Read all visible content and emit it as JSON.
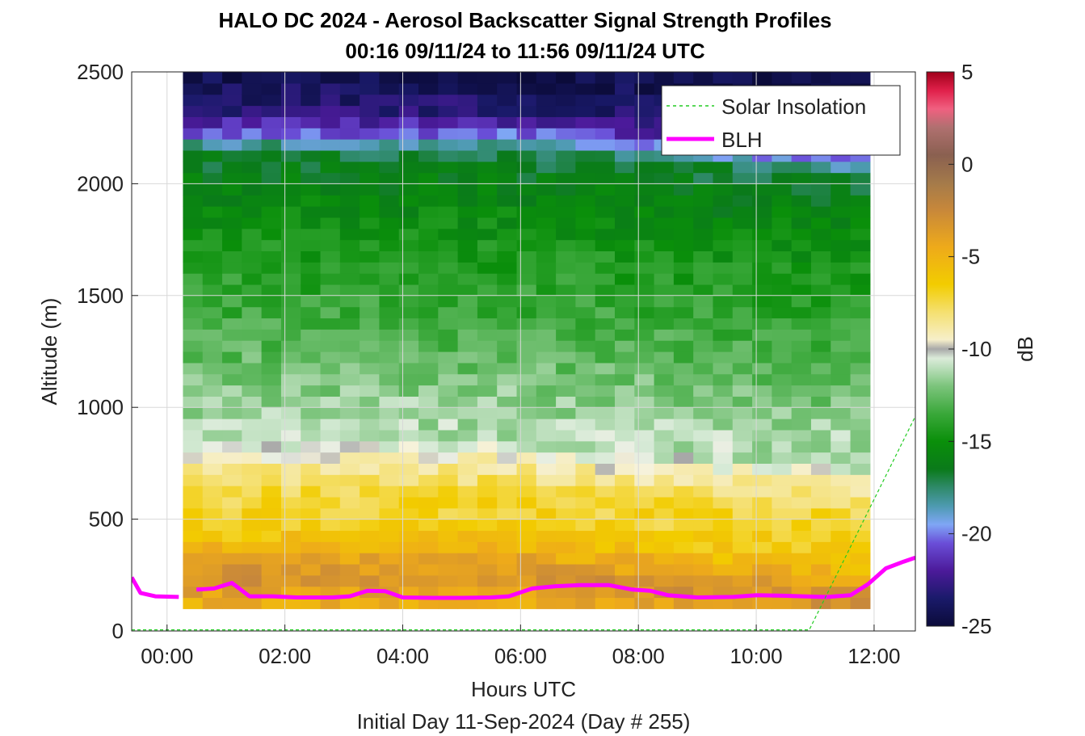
{
  "chart_data": {
    "type": "heatmap",
    "title": "HALO DC 2024 - Aerosol Backscatter Signal Strength Profiles",
    "subtitle": "00:16 09/11/24 to 11:56 09/11/24  UTC",
    "xlabel": "Hours UTC",
    "xlabel2": "Initial Day 11-Sep-2024 (Day # 255)",
    "ylabel": "Altitude (m)",
    "colorbar_label": "dB",
    "xlim": [
      -0.6,
      12.7
    ],
    "ylim": [
      0,
      2500
    ],
    "x_ticks": [
      {
        "v": 0,
        "label": "00:00"
      },
      {
        "v": 2,
        "label": "02:00"
      },
      {
        "v": 4,
        "label": "04:00"
      },
      {
        "v": 6,
        "label": "06:00"
      },
      {
        "v": 8,
        "label": "08:00"
      },
      {
        "v": 10,
        "label": "10:00"
      },
      {
        "v": 12,
        "label": "12:00"
      }
    ],
    "y_ticks": [
      {
        "v": 0,
        "label": "0"
      },
      {
        "v": 500,
        "label": "500"
      },
      {
        "v": 1000,
        "label": "1000"
      },
      {
        "v": 1500,
        "label": "1500"
      },
      {
        "v": 2000,
        "label": "2000"
      },
      {
        "v": 2500,
        "label": "2500"
      }
    ],
    "clim": [
      -25,
      5
    ],
    "cbar_ticks": [
      {
        "v": 5,
        "label": "5"
      },
      {
        "v": 0,
        "label": "0"
      },
      {
        "v": -5,
        "label": "-5"
      },
      {
        "v": -10,
        "label": "-10"
      },
      {
        "v": -15,
        "label": "-15"
      },
      {
        "v": -20,
        "label": "-20"
      },
      {
        "v": -25,
        "label": "-25"
      }
    ],
    "heatmap": {
      "x_start": 0.27,
      "x_end": 11.93,
      "bins": 35,
      "y_start": 100,
      "y_end": 2500,
      "no_data_x": [
        -0.6,
        0.27
      ],
      "profile_dB": [
        {
          "alt": 100,
          "dB": -5.0
        },
        {
          "alt": 250,
          "dB": -3.0
        },
        {
          "alt": 450,
          "dB": -6.5
        },
        {
          "alt": 650,
          "dB": -7.5
        },
        {
          "alt": 780,
          "dB": -9.5
        },
        {
          "alt": 850,
          "dB": -11.0
        },
        {
          "alt": 1000,
          "dB": -11.5
        },
        {
          "alt": 1300,
          "dB": -13.0
        },
        {
          "alt": 1700,
          "dB": -14.5
        },
        {
          "alt": 2000,
          "dB": -16.0
        },
        {
          "alt": 2150,
          "dB": -17.0
        },
        {
          "alt": 2230,
          "dB": -20.5
        },
        {
          "alt": 2320,
          "dB": -23.0
        },
        {
          "alt": 2500,
          "dB": -24.5
        }
      ]
    },
    "series": [
      {
        "name": "BLH",
        "color": "#ff00ff",
        "segments": [
          [
            [
              -0.6,
              240
            ],
            [
              -0.45,
              170
            ],
            [
              -0.2,
              155
            ],
            [
              0.2,
              152
            ]
          ],
          [
            [
              0.5,
              185
            ],
            [
              0.8,
              190
            ],
            [
              1.1,
              215
            ],
            [
              1.4,
              155
            ],
            [
              1.8,
              155
            ],
            [
              2.2,
              150
            ],
            [
              2.8,
              150
            ],
            [
              3.1,
              155
            ],
            [
              3.4,
              180
            ],
            [
              3.7,
              178
            ],
            [
              4.0,
              150
            ],
            [
              4.5,
              148
            ],
            [
              5.0,
              148
            ],
            [
              5.5,
              150
            ],
            [
              5.8,
              155
            ],
            [
              6.2,
              190
            ],
            [
              6.6,
              200
            ],
            [
              7.0,
              205
            ],
            [
              7.5,
              205
            ],
            [
              7.9,
              185
            ],
            [
              8.2,
              180
            ],
            [
              8.5,
              160
            ],
            [
              9.0,
              150
            ],
            [
              9.6,
              152
            ],
            [
              10.0,
              160
            ],
            [
              10.4,
              158
            ],
            [
              10.8,
              155
            ],
            [
              11.2,
              152
            ],
            [
              11.6,
              160
            ],
            [
              11.9,
              210
            ],
            [
              12.2,
              280
            ],
            [
              12.5,
              310
            ],
            [
              12.7,
              328
            ]
          ]
        ]
      },
      {
        "name": "Solar Insolation",
        "color": "#22cc22",
        "segments": [
          [
            [
              -0.6,
              5
            ],
            [
              10.9,
              5
            ],
            [
              12.7,
              960
            ]
          ]
        ]
      }
    ],
    "legend": {
      "placement": "top-right",
      "entries": [
        "Solar Insolation",
        "BLH"
      ]
    },
    "grid": true
  }
}
